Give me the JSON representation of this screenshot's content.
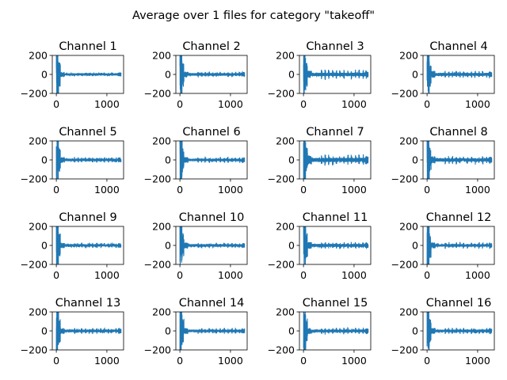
{
  "figure": {
    "suptitle": "Average over 1 files for category \"takeoff\""
  },
  "style": {
    "line_color": "#1f77b4",
    "axes_color": "#000000",
    "background": "#ffffff"
  },
  "chart_data": [
    {
      "type": "line",
      "title": "Channel 1",
      "xlim": [
        -80,
        1330
      ],
      "ylim": [
        -200,
        200
      ],
      "xticks": [
        0,
        1000
      ],
      "yticks": [
        -200,
        0,
        200
      ],
      "n_samples": 1280,
      "burst_amplitude": 260,
      "noise_amplitude": 12,
      "spike_amplitude": 20,
      "grid": false
    },
    {
      "type": "line",
      "title": "Channel 2",
      "xlim": [
        -80,
        1330
      ],
      "ylim": [
        -200,
        200
      ],
      "xticks": [
        0,
        1000
      ],
      "yticks": [
        -200,
        0,
        200
      ],
      "n_samples": 1280,
      "burst_amplitude": 260,
      "noise_amplitude": 14,
      "spike_amplitude": 32,
      "grid": false
    },
    {
      "type": "line",
      "title": "Channel 3",
      "xlim": [
        -80,
        1330
      ],
      "ylim": [
        -200,
        200
      ],
      "xticks": [
        0,
        1000
      ],
      "yticks": [
        -200,
        0,
        200
      ],
      "n_samples": 1280,
      "burst_amplitude": 260,
      "noise_amplitude": 18,
      "spike_amplitude": 60,
      "grid": false
    },
    {
      "type": "line",
      "title": "Channel 4",
      "xlim": [
        -80,
        1330
      ],
      "ylim": [
        -200,
        200
      ],
      "xticks": [
        0,
        1000
      ],
      "yticks": [
        -200,
        0,
        200
      ],
      "n_samples": 1280,
      "burst_amplitude": 260,
      "noise_amplitude": 16,
      "spike_amplitude": 40,
      "grid": false
    },
    {
      "type": "line",
      "title": "Channel 5",
      "xlim": [
        -80,
        1330
      ],
      "ylim": [
        -200,
        200
      ],
      "xticks": [
        0,
        1000
      ],
      "yticks": [
        -200,
        0,
        200
      ],
      "n_samples": 1280,
      "burst_amplitude": 260,
      "noise_amplitude": 14,
      "spike_amplitude": 35,
      "grid": false
    },
    {
      "type": "line",
      "title": "Channel 6",
      "xlim": [
        -80,
        1330
      ],
      "ylim": [
        -200,
        200
      ],
      "xticks": [
        0,
        1000
      ],
      "yticks": [
        -200,
        0,
        200
      ],
      "n_samples": 1280,
      "burst_amplitude": 260,
      "noise_amplitude": 14,
      "spike_amplitude": 35,
      "grid": false
    },
    {
      "type": "line",
      "title": "Channel 7",
      "xlim": [
        -80,
        1330
      ],
      "ylim": [
        -200,
        200
      ],
      "xticks": [
        0,
        1000
      ],
      "yticks": [
        -200,
        0,
        200
      ],
      "n_samples": 1280,
      "burst_amplitude": 260,
      "noise_amplitude": 22,
      "spike_amplitude": 65,
      "grid": false
    },
    {
      "type": "line",
      "title": "Channel 8",
      "xlim": [
        -80,
        1330
      ],
      "ylim": [
        -200,
        200
      ],
      "xticks": [
        0,
        1000
      ],
      "yticks": [
        -200,
        0,
        200
      ],
      "n_samples": 1280,
      "burst_amplitude": 260,
      "noise_amplitude": 18,
      "spike_amplitude": 50,
      "grid": false
    },
    {
      "type": "line",
      "title": "Channel 9",
      "xlim": [
        -80,
        1330
      ],
      "ylim": [
        -200,
        200
      ],
      "xticks": [
        0,
        1000
      ],
      "yticks": [
        -200,
        0,
        200
      ],
      "n_samples": 1280,
      "burst_amplitude": 260,
      "noise_amplitude": 13,
      "spike_amplitude": 30,
      "grid": false
    },
    {
      "type": "line",
      "title": "Channel 10",
      "xlim": [
        -80,
        1330
      ],
      "ylim": [
        -200,
        200
      ],
      "xticks": [
        0,
        1000
      ],
      "yticks": [
        -200,
        0,
        200
      ],
      "n_samples": 1280,
      "burst_amplitude": 260,
      "noise_amplitude": 14,
      "spike_amplitude": 30,
      "grid": false
    },
    {
      "type": "line",
      "title": "Channel 11",
      "xlim": [
        -80,
        1330
      ],
      "ylim": [
        -200,
        200
      ],
      "xticks": [
        0,
        1000
      ],
      "yticks": [
        -200,
        0,
        200
      ],
      "n_samples": 1280,
      "burst_amplitude": 260,
      "noise_amplitude": 16,
      "spike_amplitude": 40,
      "grid": false
    },
    {
      "type": "line",
      "title": "Channel 12",
      "xlim": [
        -80,
        1330
      ],
      "ylim": [
        -200,
        200
      ],
      "xticks": [
        0,
        1000
      ],
      "yticks": [
        -200,
        0,
        200
      ],
      "n_samples": 1280,
      "burst_amplitude": 260,
      "noise_amplitude": 14,
      "spike_amplitude": 40,
      "grid": false
    },
    {
      "type": "line",
      "title": "Channel 13",
      "xlim": [
        -80,
        1330
      ],
      "ylim": [
        -200,
        200
      ],
      "xticks": [
        0,
        1000
      ],
      "yticks": [
        -200,
        0,
        200
      ],
      "n_samples": 1280,
      "burst_amplitude": 260,
      "noise_amplitude": 14,
      "spike_amplitude": 35,
      "grid": false
    },
    {
      "type": "line",
      "title": "Channel 14",
      "xlim": [
        -80,
        1330
      ],
      "ylim": [
        -200,
        200
      ],
      "xticks": [
        0,
        1000
      ],
      "yticks": [
        -200,
        0,
        200
      ],
      "n_samples": 1280,
      "burst_amplitude": 260,
      "noise_amplitude": 14,
      "spike_amplitude": 35,
      "grid": false
    },
    {
      "type": "line",
      "title": "Channel 15",
      "xlim": [
        -80,
        1330
      ],
      "ylim": [
        -200,
        200
      ],
      "xticks": [
        0,
        1000
      ],
      "yticks": [
        -200,
        0,
        200
      ],
      "n_samples": 1280,
      "burst_amplitude": 260,
      "noise_amplitude": 15,
      "spike_amplitude": 40,
      "grid": false
    },
    {
      "type": "line",
      "title": "Channel 16",
      "xlim": [
        -80,
        1330
      ],
      "ylim": [
        -200,
        200
      ],
      "xticks": [
        0,
        1000
      ],
      "yticks": [
        -200,
        0,
        200
      ],
      "n_samples": 1280,
      "burst_amplitude": 260,
      "noise_amplitude": 14,
      "spike_amplitude": 35,
      "grid": false
    }
  ]
}
